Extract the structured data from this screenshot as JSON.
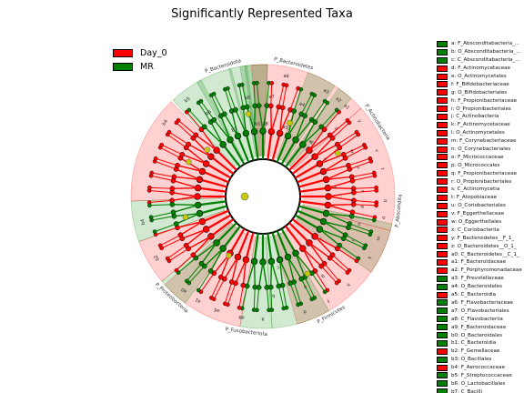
{
  "title": "Significantly Represented Taxa",
  "colors": {
    "day0": "#ff0000",
    "mr": "#008000",
    "neutral": "#c8c800"
  },
  "legend": [
    {
      "label": "Day_0",
      "color": "#ff0000"
    },
    {
      "label": "MR",
      "color": "#008000"
    }
  ],
  "chart_data": {
    "type": "cladogram",
    "title": "Significantly Represented Taxa",
    "classes": [
      "Day_0",
      "MR"
    ],
    "sectors": [
      {
        "key": "b3",
        "group": "MR",
        "start": -133,
        "end": -118
      },
      {
        "key": "b6",
        "group": "MR",
        "start": -120,
        "end": -104
      },
      {
        "key": "a8",
        "group": "MR",
        "start": -105,
        "end": -97
      },
      {
        "key": "b0",
        "group": "MR",
        "start": -100,
        "end": -88
      },
      {
        "key": "b1",
        "group": "MR",
        "start": -98,
        "end": -88
      },
      {
        "key": "p1",
        "group": "Day_0",
        "start": -95,
        "end": -42
      },
      {
        "key": "a4",
        "group": "MR",
        "start": -70,
        "end": -57
      },
      {
        "key": "a3",
        "group": "MR",
        "start": -55,
        "end": -48
      },
      {
        "key": "p2",
        "group": "Day_0",
        "start": -42,
        "end": 15
      },
      {
        "key": "g1",
        "group": "MR",
        "start": 12,
        "end": 35
      },
      {
        "key": "p3",
        "group": "Day_0",
        "start": 15,
        "end": 75
      },
      {
        "key": "g2",
        "group": "MR",
        "start": 60,
        "end": 86
      },
      {
        "key": "g3",
        "group": "MR",
        "start": 86,
        "end": 100
      },
      {
        "key": "p4",
        "group": "Day_0",
        "start": 100,
        "end": 138
      },
      {
        "key": "g4",
        "group": "MR",
        "start": 126,
        "end": 140
      },
      {
        "key": "p5",
        "group": "Day_0",
        "start": 140,
        "end": 160
      },
      {
        "key": "g5",
        "group": "MR",
        "start": 160,
        "end": 178
      },
      {
        "key": "p6",
        "group": "Day_0",
        "start": 178,
        "end": 226
      }
    ],
    "outer_labels": [
      {
        "text": "P_Bacteroidota",
        "angle": -107
      },
      {
        "text": "P_Bacteroidetes",
        "angle": -77
      },
      {
        "text": "P_Actinobacteria",
        "angle": -33
      },
      {
        "text": "P_Abscondita",
        "angle": 6
      },
      {
        "text": "P_Firmicutes",
        "angle": 60
      },
      {
        "text": "P_Fusobacteriota",
        "angle": 97
      },
      {
        "text": "P_Proteobacteria",
        "angle": 132
      }
    ],
    "legend_entries": [
      {
        "label": "a: F_Absconditabacteria_...",
        "group": "MR"
      },
      {
        "label": "b: O_Absconditabacteria_...",
        "group": "MR"
      },
      {
        "label": "c: C_Absconditabacteria_...",
        "group": "MR"
      },
      {
        "label": "d: F_Actinomycetaceae",
        "group": "Day_0"
      },
      {
        "label": "e: O_Actinomycetales",
        "group": "Day_0"
      },
      {
        "label": "f: F_Bifidobacteriaceae",
        "group": "Day_0"
      },
      {
        "label": "g: O_Bifidobacteriales",
        "group": "Day_0"
      },
      {
        "label": "h: F_Propionibacteriaceae",
        "group": "Day_0"
      },
      {
        "label": "i: O_Propionibacteriales",
        "group": "Day_0"
      },
      {
        "label": "j: C_Actinobacteria",
        "group": "Day_0"
      },
      {
        "label": "k: F_Actinomycetaceae",
        "group": "Day_0"
      },
      {
        "label": "l: O_Actinomycetales",
        "group": "Day_0"
      },
      {
        "label": "m: F_Corynebacteriaceae",
        "group": "Day_0"
      },
      {
        "label": "n: O_Corynebacteriales",
        "group": "Day_0"
      },
      {
        "label": "o: F_Micrococcaceae",
        "group": "Day_0"
      },
      {
        "label": "p: O_Micrococcales",
        "group": "Day_0"
      },
      {
        "label": "q: F_Propionibacteriaceae",
        "group": "Day_0"
      },
      {
        "label": "r: O_Propionibacteriales",
        "group": "Day_0"
      },
      {
        "label": "s: C_Actinomycetia",
        "group": "Day_0"
      },
      {
        "label": "t: F_Atopobiaceae",
        "group": "Day_0"
      },
      {
        "label": "u: O_Coriobacteriales",
        "group": "Day_0"
      },
      {
        "label": "v: F_Eggerthellaceae",
        "group": "Day_0"
      },
      {
        "label": "w: O_Eggerthellales",
        "group": "Day_0"
      },
      {
        "label": "x: C_Coriobacteriia",
        "group": "Day_0"
      },
      {
        "label": "y: F_Bacteroidetes__F_1_",
        "group": "Day_0"
      },
      {
        "label": "z: O_Bacteroidetes__O_1_",
        "group": "Day_0"
      },
      {
        "label": "a0: C_Bacteroidetes__C_1_",
        "group": "Day_0"
      },
      {
        "label": "a1: F_Bacteroidaceae",
        "group": "Day_0"
      },
      {
        "label": "a2: F_Porphyromonadaceae",
        "group": "Day_0"
      },
      {
        "label": "a3: F_Prevotellaceae",
        "group": "MR"
      },
      {
        "label": "a4: O_Bacteroidales",
        "group": "MR"
      },
      {
        "label": "a5: C_Bacteroidia",
        "group": "Day_0"
      },
      {
        "label": "a6: F_Flavobacteriaceae",
        "group": "MR"
      },
      {
        "label": "a7: O_Flavobacteriales",
        "group": "MR"
      },
      {
        "label": "a8: C_Flavobacteriia",
        "group": "MR"
      },
      {
        "label": "a9: F_Bacteroidaceae",
        "group": "MR"
      },
      {
        "label": "b0: O_Bacteroidales",
        "group": "MR"
      },
      {
        "label": "b1: C_Bacteroidia",
        "group": "MR"
      },
      {
        "label": "b2: F_Gemellaceae",
        "group": "Day_0"
      },
      {
        "label": "b3: O_Bacillales",
        "group": "MR"
      },
      {
        "label": "b4: F_Aerococcaceae",
        "group": "Day_0"
      },
      {
        "label": "b5: F_Streptococcaceae",
        "group": "MR"
      },
      {
        "label": "b6: O_Lactobacillales",
        "group": "MR"
      },
      {
        "label": "b7: C_Bacilli",
        "group": "MR"
      }
    ],
    "ring_labels": [
      {
        "text": "b4",
        "angle": -143,
        "ring": 3
      },
      {
        "text": "b5",
        "angle": -128,
        "ring": 3
      },
      {
        "text": "b6",
        "angle": -123,
        "ring": 2
      },
      {
        "text": "b7",
        "angle": -113,
        "ring": 1
      },
      {
        "text": "b0",
        "angle": -99,
        "ring": 2
      },
      {
        "text": "b1",
        "angle": -94,
        "ring": 1
      },
      {
        "text": "a8",
        "angle": -88,
        "ring": 1
      },
      {
        "text": "a7",
        "angle": -85,
        "ring": 2
      },
      {
        "text": "a6",
        "angle": -79,
        "ring": 3
      },
      {
        "text": "a5",
        "angle": -72,
        "ring": 1
      },
      {
        "text": "a4",
        "angle": -67,
        "ring": 2
      },
      {
        "text": "a3",
        "angle": -59,
        "ring": 3
      },
      {
        "text": "a2",
        "angle": -52,
        "ring": 3
      },
      {
        "text": "a1",
        "angle": -47,
        "ring": 3
      },
      {
        "text": "a0",
        "angle": -48,
        "ring": 1
      },
      {
        "text": "z",
        "angle": -43,
        "ring": 2
      },
      {
        "text": "y",
        "angle": -38,
        "ring": 3
      },
      {
        "text": "x",
        "angle": -31,
        "ring": 1
      },
      {
        "text": "w",
        "angle": -27,
        "ring": 2
      },
      {
        "text": "v",
        "angle": -22,
        "ring": 3
      },
      {
        "text": "u",
        "angle": -17,
        "ring": 2
      },
      {
        "text": "t",
        "angle": -13,
        "ring": 3
      },
      {
        "text": "s",
        "angle": -7,
        "ring": 1
      },
      {
        "text": "r",
        "angle": -3,
        "ring": 2
      },
      {
        "text": "q",
        "angle": 2,
        "ring": 3
      },
      {
        "text": "p",
        "angle": 6,
        "ring": 2
      },
      {
        "text": "o",
        "angle": 10,
        "ring": 3
      },
      {
        "text": "n",
        "angle": 16,
        "ring": 2
      },
      {
        "text": "m",
        "angle": 20,
        "ring": 3
      },
      {
        "text": "l",
        "angle": 26,
        "ring": 2
      },
      {
        "text": "k",
        "angle": 30,
        "ring": 3
      },
      {
        "text": "j",
        "angle": 36,
        "ring": 1
      },
      {
        "text": "i",
        "angle": 42,
        "ring": 2
      },
      {
        "text": "h",
        "angle": 46,
        "ring": 3
      },
      {
        "text": "g",
        "angle": 53,
        "ring": 2
      },
      {
        "text": "f",
        "angle": 58,
        "ring": 3
      },
      {
        "text": "e",
        "angle": 65,
        "ring": 2
      },
      {
        "text": "d",
        "angle": 70,
        "ring": 3
      },
      {
        "text": "c",
        "angle": 78,
        "ring": 1
      },
      {
        "text": "b",
        "angle": 84,
        "ring": 2
      },
      {
        "text": "a",
        "angle": 90,
        "ring": 3
      },
      {
        "text": "a9",
        "angle": 100,
        "ring": 3
      },
      {
        "text": "a6",
        "angle": 112,
        "ring": 3
      },
      {
        "text": "a1",
        "angle": 122,
        "ring": 3
      },
      {
        "text": "a0",
        "angle": 130,
        "ring": 3
      },
      {
        "text": "b2",
        "angle": 150,
        "ring": 3
      },
      {
        "text": "b4",
        "angle": 168,
        "ring": 3
      }
    ]
  }
}
